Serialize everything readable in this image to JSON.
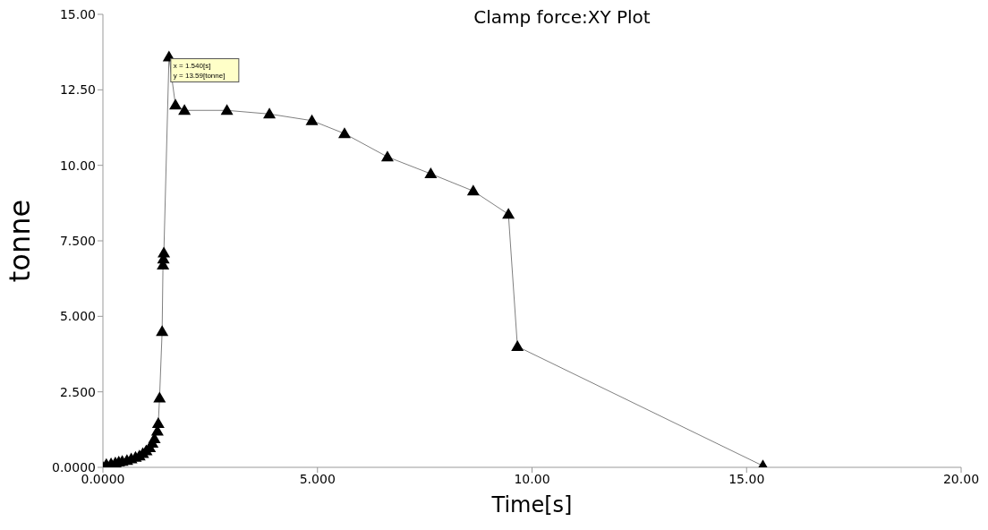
{
  "chart_data": {
    "type": "line",
    "title": "Clamp force:XY Plot",
    "xlabel": "Time[s]",
    "ylabel": "tonne",
    "x": [
      0,
      0.08,
      0.19,
      0.29,
      0.37,
      0.45,
      0.56,
      0.66,
      0.76,
      0.85,
      0.93,
      1.01,
      1.09,
      1.15,
      1.2,
      1.27,
      1.29,
      1.32,
      1.38,
      1.4,
      1.41,
      1.42,
      1.54,
      1.69,
      1.9,
      2.89,
      3.88,
      4.87,
      5.63,
      6.63,
      7.64,
      8.63,
      9.45,
      9.66,
      15.38
    ],
    "series": [
      {
        "color": "#000000",
        "values": [
          0,
          0.1,
          0.12,
          0.15,
          0.18,
          0.2,
          0.23,
          0.28,
          0.33,
          0.38,
          0.46,
          0.55,
          0.65,
          0.8,
          0.95,
          1.2,
          1.45,
          2.3,
          4.5,
          6.7,
          6.9,
          7.1,
          13.59,
          12.0,
          11.82,
          11.82,
          11.7,
          11.48,
          11.05,
          10.28,
          9.72,
          9.15,
          8.38,
          4.0,
          0.05
        ]
      }
    ],
    "xlim": [
      0,
      20
    ],
    "ylim": [
      0,
      15
    ],
    "xticks": [
      {
        "value": 0,
        "label": "0.0000"
      },
      {
        "value": 5,
        "label": "5.000"
      },
      {
        "value": 10,
        "label": "10.00"
      },
      {
        "value": 15,
        "label": "15.00"
      },
      {
        "value": 20,
        "label": "20.00"
      }
    ],
    "yticks": [
      {
        "value": 0,
        "label": "0.0000"
      },
      {
        "value": 2.5,
        "label": "2.500"
      },
      {
        "value": 5,
        "label": "5.000"
      },
      {
        "value": 7.5,
        "label": "7.500"
      },
      {
        "value": 10,
        "label": "10.00"
      },
      {
        "value": 12.5,
        "label": "12.50"
      },
      {
        "value": 15,
        "label": "15.00"
      }
    ],
    "annotations": [
      {
        "text": "x = 1.540[s]\ny = 13.59[tonne]",
        "x": 1.54,
        "y": 13.59
      }
    ],
    "marker": "triangle",
    "legend": false,
    "grid": false
  }
}
